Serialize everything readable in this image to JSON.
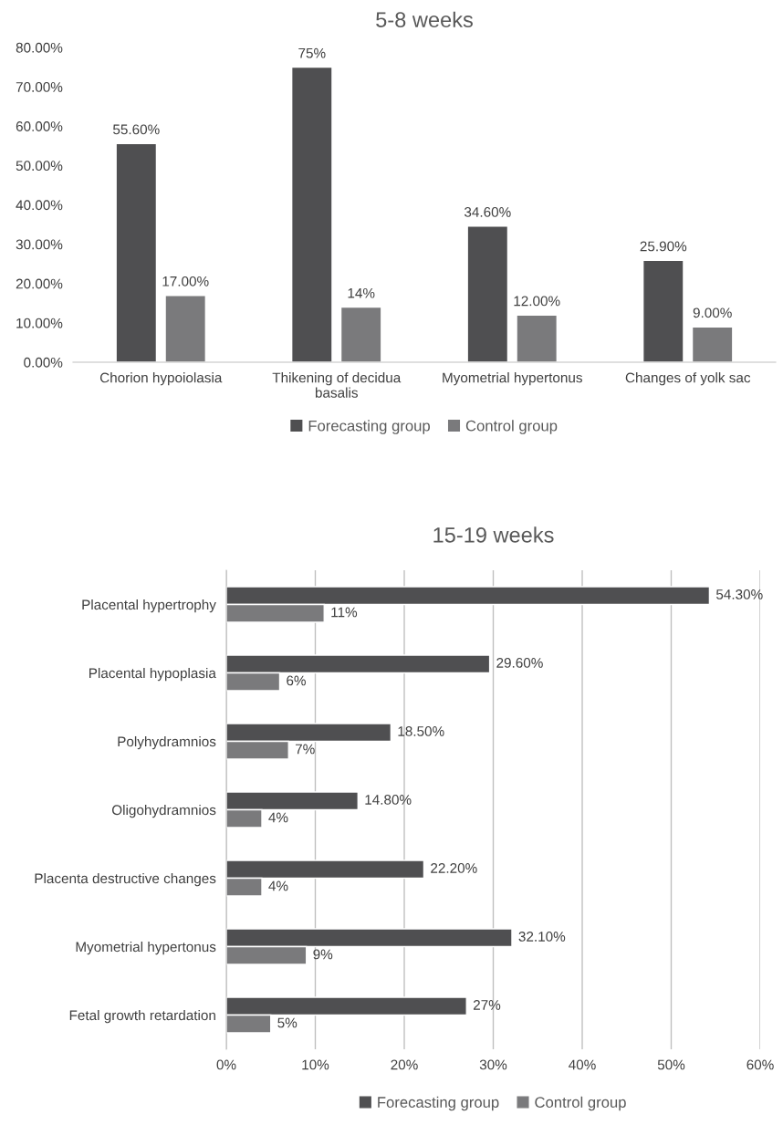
{
  "chart_data": [
    {
      "type": "bar",
      "title": "5-8 weeks",
      "categories": [
        "Chorion hypoiolasia",
        "Thikening of decidua\nbasalis",
        "Myometrial hypertonus",
        "Changes of yolk sac"
      ],
      "series": [
        {
          "name": "Forecasting group",
          "color": "#4f4f51",
          "values": [
            55.6,
            75,
            34.6,
            25.9
          ],
          "value_labels": [
            "55.60%",
            "75%",
            "34.60%",
            "25.90%"
          ]
        },
        {
          "name": "Control group",
          "color": "#7a7a7c",
          "values": [
            17,
            14,
            12,
            9
          ],
          "value_labels": [
            "17.00%",
            "14%",
            "12.00%",
            "9.00%"
          ]
        }
      ],
      "ylim": [
        0,
        80
      ],
      "yticks": [
        {
          "value": 0,
          "label": "0.00%"
        },
        {
          "value": 10,
          "label": "10.00%"
        },
        {
          "value": 20,
          "label": "20.00%"
        },
        {
          "value": 30,
          "label": "30.00%"
        },
        {
          "value": 40,
          "label": "40.00%"
        },
        {
          "value": 50,
          "label": "50.00%"
        },
        {
          "value": 60,
          "label": "60.00%"
        },
        {
          "value": 70,
          "label": "70.00%"
        },
        {
          "value": 80,
          "label": "80.00%"
        }
      ],
      "grid": false,
      "legend": "bottom"
    },
    {
      "type": "bar",
      "orientation": "horizontal",
      "title": "15-19 weeks",
      "categories": [
        "Placental hypertrophy",
        "Placental hypoplasia",
        "Polyhydramnios",
        "Oligohydramnios",
        "Placenta destructive changes",
        "Myometrial hypertonus",
        "Fetal growth retardation"
      ],
      "series": [
        {
          "name": "Forecasting group",
          "color": "#4f4f51",
          "values": [
            54.3,
            29.6,
            18.5,
            14.8,
            22.2,
            32.1,
            27
          ],
          "value_labels": [
            "54.30%",
            "29.60%",
            "18.50%",
            "14.80%",
            "22.20%",
            "32.10%",
            "27%"
          ]
        },
        {
          "name": "Control group",
          "color": "#7a7a7c",
          "values": [
            11,
            6,
            7,
            4,
            4,
            9,
            5
          ],
          "value_labels": [
            "11%",
            "6%",
            "7%",
            "4%",
            "4%",
            "9%",
            "5%"
          ]
        }
      ],
      "xlim": [
        0,
        60
      ],
      "xticks": [
        {
          "value": 0,
          "label": "0%"
        },
        {
          "value": 10,
          "label": "10%"
        },
        {
          "value": 20,
          "label": "20%"
        },
        {
          "value": 30,
          "label": "30%"
        },
        {
          "value": 40,
          "label": "40%"
        },
        {
          "value": 50,
          "label": "50%"
        },
        {
          "value": 60,
          "label": "60%"
        }
      ],
      "grid": "x",
      "legend": "bottom"
    }
  ]
}
